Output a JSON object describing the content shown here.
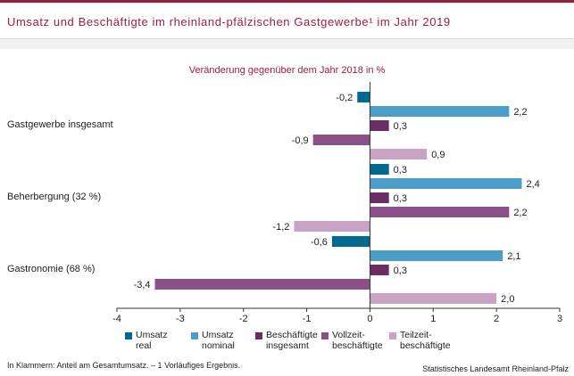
{
  "page": {
    "title": "Umsatz und Beschäftigte im rheinland-pfälzischen Gastgewerbe¹ im Jahr 2019",
    "footnote": "In Klammern: Anteil am Gesamtumsatz. – 1 Vorläufiges Ergebnis.",
    "source": "Statistisches Landesamt Rheinland-Pfalz"
  },
  "chart_data": {
    "type": "bar",
    "orientation": "horizontal",
    "title": "Veränderung gegenüber dem Jahr 2018 in %",
    "categories": [
      "Gastgewerbe insgesamt",
      "Beherbergung (32 %)",
      "Gastronomie (68 %)"
    ],
    "series": [
      {
        "name": "Umsatz\nreal",
        "color": "#00698f",
        "values": [
          -0.2,
          0.3,
          -0.6
        ]
      },
      {
        "name": "Umsatz\nnominal",
        "color": "#4b9cc8",
        "values": [
          2.2,
          2.4,
          2.1
        ]
      },
      {
        "name": "Beschäftigte\ninsgesamt",
        "color": "#6b2d64",
        "values": [
          0.3,
          0.3,
          0.3
        ]
      },
      {
        "name": "Vollzeit-\nbeschäftigte",
        "color": "#8c5088",
        "values": [
          -0.9,
          2.2,
          -3.4
        ]
      },
      {
        "name": "Teilzeit-\nbeschäftigte",
        "color": "#c9a3c5",
        "values": [
          0.9,
          -1.2,
          2.0
        ]
      }
    ],
    "value_labels": [
      [
        "-0,2",
        "0,3",
        "-0,6"
      ],
      [
        "2,2",
        "2,4",
        "2,1"
      ],
      [
        "0,3",
        "0,3",
        "0,3"
      ],
      [
        "-0,9",
        "2,2",
        "-3,4"
      ],
      [
        "0,9",
        "-1,2",
        "2,0"
      ]
    ],
    "xlim": [
      -4,
      3
    ],
    "xticks": [
      -4,
      -3,
      -2,
      -1,
      0,
      1,
      2,
      3
    ],
    "xtick_labels": [
      "-4",
      "-3",
      "-2",
      "-1",
      "0",
      "1",
      "2",
      "3"
    ],
    "grid": false,
    "legend_position": "bottom"
  }
}
